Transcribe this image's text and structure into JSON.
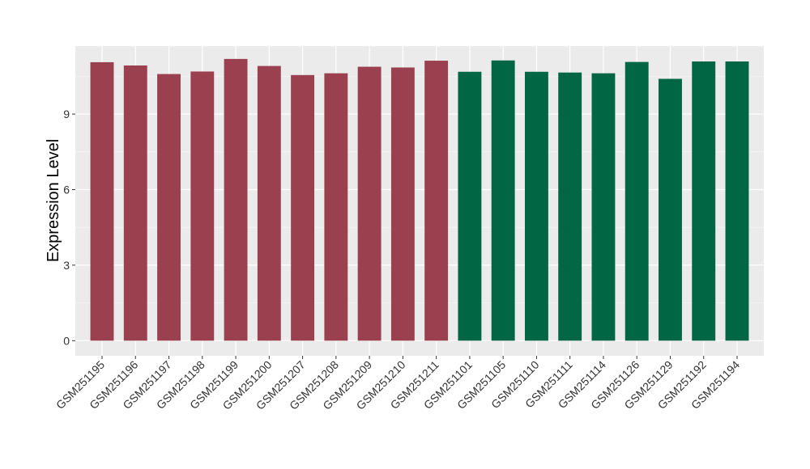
{
  "chart_data": {
    "type": "bar",
    "ylabel": "Expression Level",
    "xlabel": "",
    "ylim": [
      -0.6,
      11.7
    ],
    "yticks": [
      0,
      3,
      6,
      9
    ],
    "grid": true,
    "background": "#ebebeb",
    "categories": [
      "GSM251195",
      "GSM251196",
      "GSM251197",
      "GSM251198",
      "GSM251199",
      "GSM251200",
      "GSM251207",
      "GSM251208",
      "GSM251209",
      "GSM251210",
      "GSM251211",
      "GSM251101",
      "GSM251105",
      "GSM251110",
      "GSM251111",
      "GSM251114",
      "GSM251126",
      "GSM251129",
      "GSM251192",
      "GSM251194"
    ],
    "values": [
      11.06,
      10.93,
      10.59,
      10.69,
      11.19,
      10.91,
      10.55,
      10.62,
      10.88,
      10.85,
      11.12,
      10.68,
      11.13,
      10.68,
      10.65,
      10.62,
      11.07,
      10.4,
      11.09,
      11.09
    ],
    "groups": [
      "g1",
      "g1",
      "g1",
      "g1",
      "g1",
      "g1",
      "g1",
      "g1",
      "g1",
      "g1",
      "g1",
      "g2",
      "g2",
      "g2",
      "g2",
      "g2",
      "g2",
      "g2",
      "g2",
      "g2"
    ],
    "group_colors": {
      "g1": "#9b404f",
      "g2": "#006644"
    }
  }
}
